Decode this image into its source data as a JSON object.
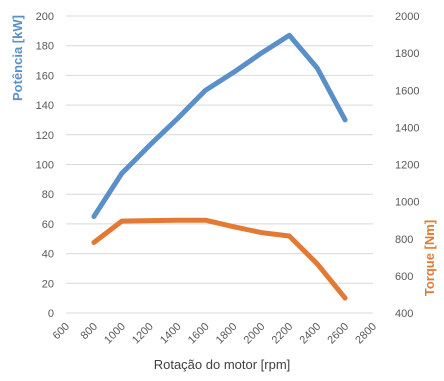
{
  "chart_data": {
    "type": "line",
    "title": "",
    "xlabel": "Rotação do motor [rpm]",
    "ylabel": "Potência [kW]",
    "y2label": "Torque [Nm]",
    "xlim": [
      600,
      2800
    ],
    "ylim": [
      0,
      200
    ],
    "y2lim": [
      400,
      2000
    ],
    "x_ticks": [
      600,
      800,
      1000,
      1200,
      1400,
      1600,
      1800,
      2000,
      2200,
      2400,
      2600,
      2800
    ],
    "y_ticks": [
      0,
      20,
      40,
      60,
      80,
      100,
      120,
      140,
      160,
      180,
      200
    ],
    "y2_ticks": [
      400,
      600,
      800,
      1000,
      1200,
      1400,
      1600,
      1800,
      2000
    ],
    "grid": true,
    "legend": "none",
    "colors": {
      "power": "#5b8fc8",
      "torque": "#e27a35",
      "grid": "#d9d9d9",
      "axis_text": "#595959"
    },
    "series": [
      {
        "axis": "left",
        "x": [
          800,
          1000,
          1200,
          1400,
          1600,
          1800,
          2000,
          2200,
          2400,
          2600
        ],
        "values": [
          65,
          94,
          113,
          131,
          150,
          162,
          175,
          187,
          165,
          130
        ]
      },
      {
        "axis": "right",
        "x": [
          800,
          1000,
          1200,
          1400,
          1600,
          1800,
          2000,
          2200,
          2400,
          2600
        ],
        "values": [
          780,
          895,
          898,
          900,
          900,
          865,
          833,
          815,
          665,
          480
        ]
      }
    ]
  }
}
